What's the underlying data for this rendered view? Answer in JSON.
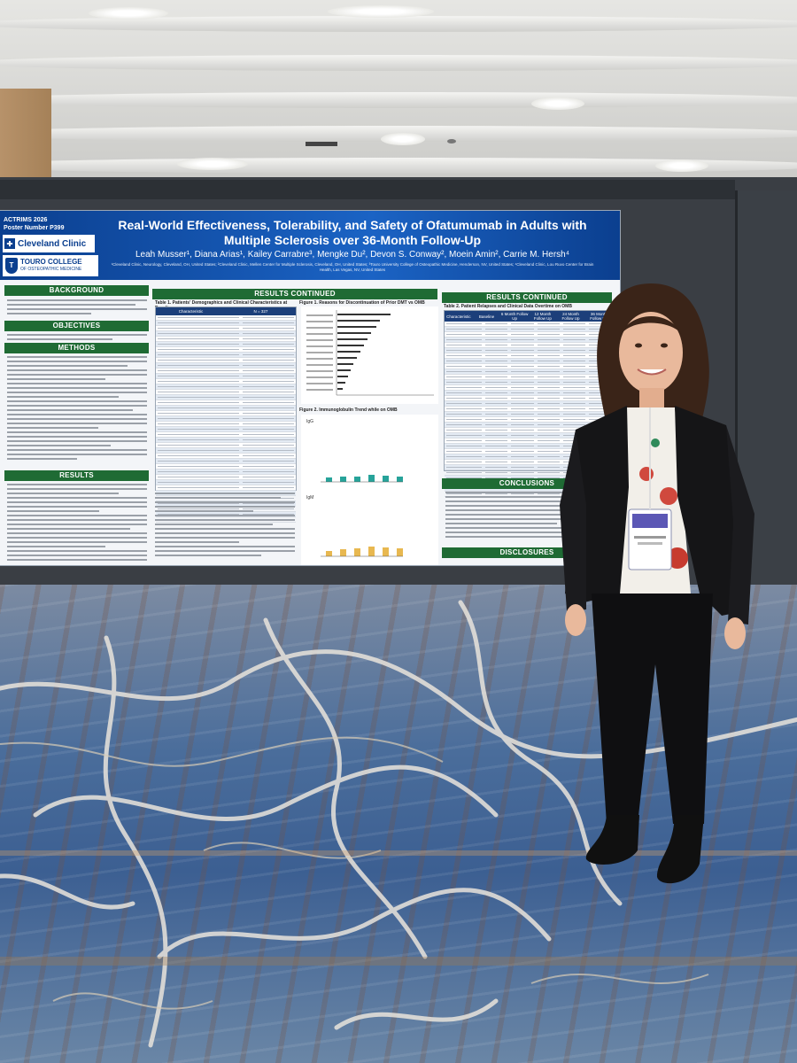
{
  "poster": {
    "meeting": "ACTRIMS 2026",
    "poster_number": "Poster Number P399",
    "logo_primary": "Cleveland Clinic",
    "logo_secondary_line1": "TOURO COLLEGE",
    "logo_secondary_line2": "OF OSTEOPATHIC MEDICINE",
    "title": "Real-World Effectiveness, Tolerability, and Safety of Ofatumumab in Adults with Multiple Sclerosis over 36-Month Follow-Up",
    "authors": "Leah Musser¹, Diana Arias¹, Kailey Carrabre³, Mengke Du², Devon S. Conway², Moein Amin², Carrie M. Hersh⁴",
    "affiliations": "¹Cleveland Clinic, Neurology, Cleveland, OH, United States; ²Cleveland Clinic, Mellen Center for Multiple Sclerosis, Cleveland, OH, United States; ³Touro University College of Osteopathic Medicine, Henderson, NV, United States; ⁴Cleveland Clinic, Lou Ruvo Center for Brain Health, Las Vegas, NV, United States",
    "sections": {
      "background": "BACKGROUND",
      "objectives": "OBJECTIVES",
      "methods": "METHODS",
      "results": "RESULTS",
      "results_continued": "RESULTS CONTINUED",
      "conclusions": "CONCLUSIONS",
      "disclosures": "DISCLOSURES"
    },
    "table1_title": "Table 1. Patients' Demographics and Clinical Characteristics at Baseline",
    "table2_title": "Table 2. Patient Relapses and Clinical Data Overtime on OMB",
    "figure1_title": "Figure 1. Reasons for Discontinuation of Prior DMT vs OMB",
    "figure2_title": "Figure 2. Immunoglobulin Trend while on OMB",
    "figure2_igg": "IgG",
    "figure2_igm": "IgM",
    "table2_columns": [
      "Characteristic",
      "Baseline",
      "6 Month Follow Up",
      "12 Month Follow Up",
      "24 Month Follow Up",
      "36 Month Follow Up"
    ],
    "table1_columns": [
      "Characteristic",
      "N = 327"
    ]
  },
  "colors": {
    "header_blue": "#1b63c4",
    "section_green": "#1f6b34",
    "table_navy": "#1c3f7a"
  }
}
